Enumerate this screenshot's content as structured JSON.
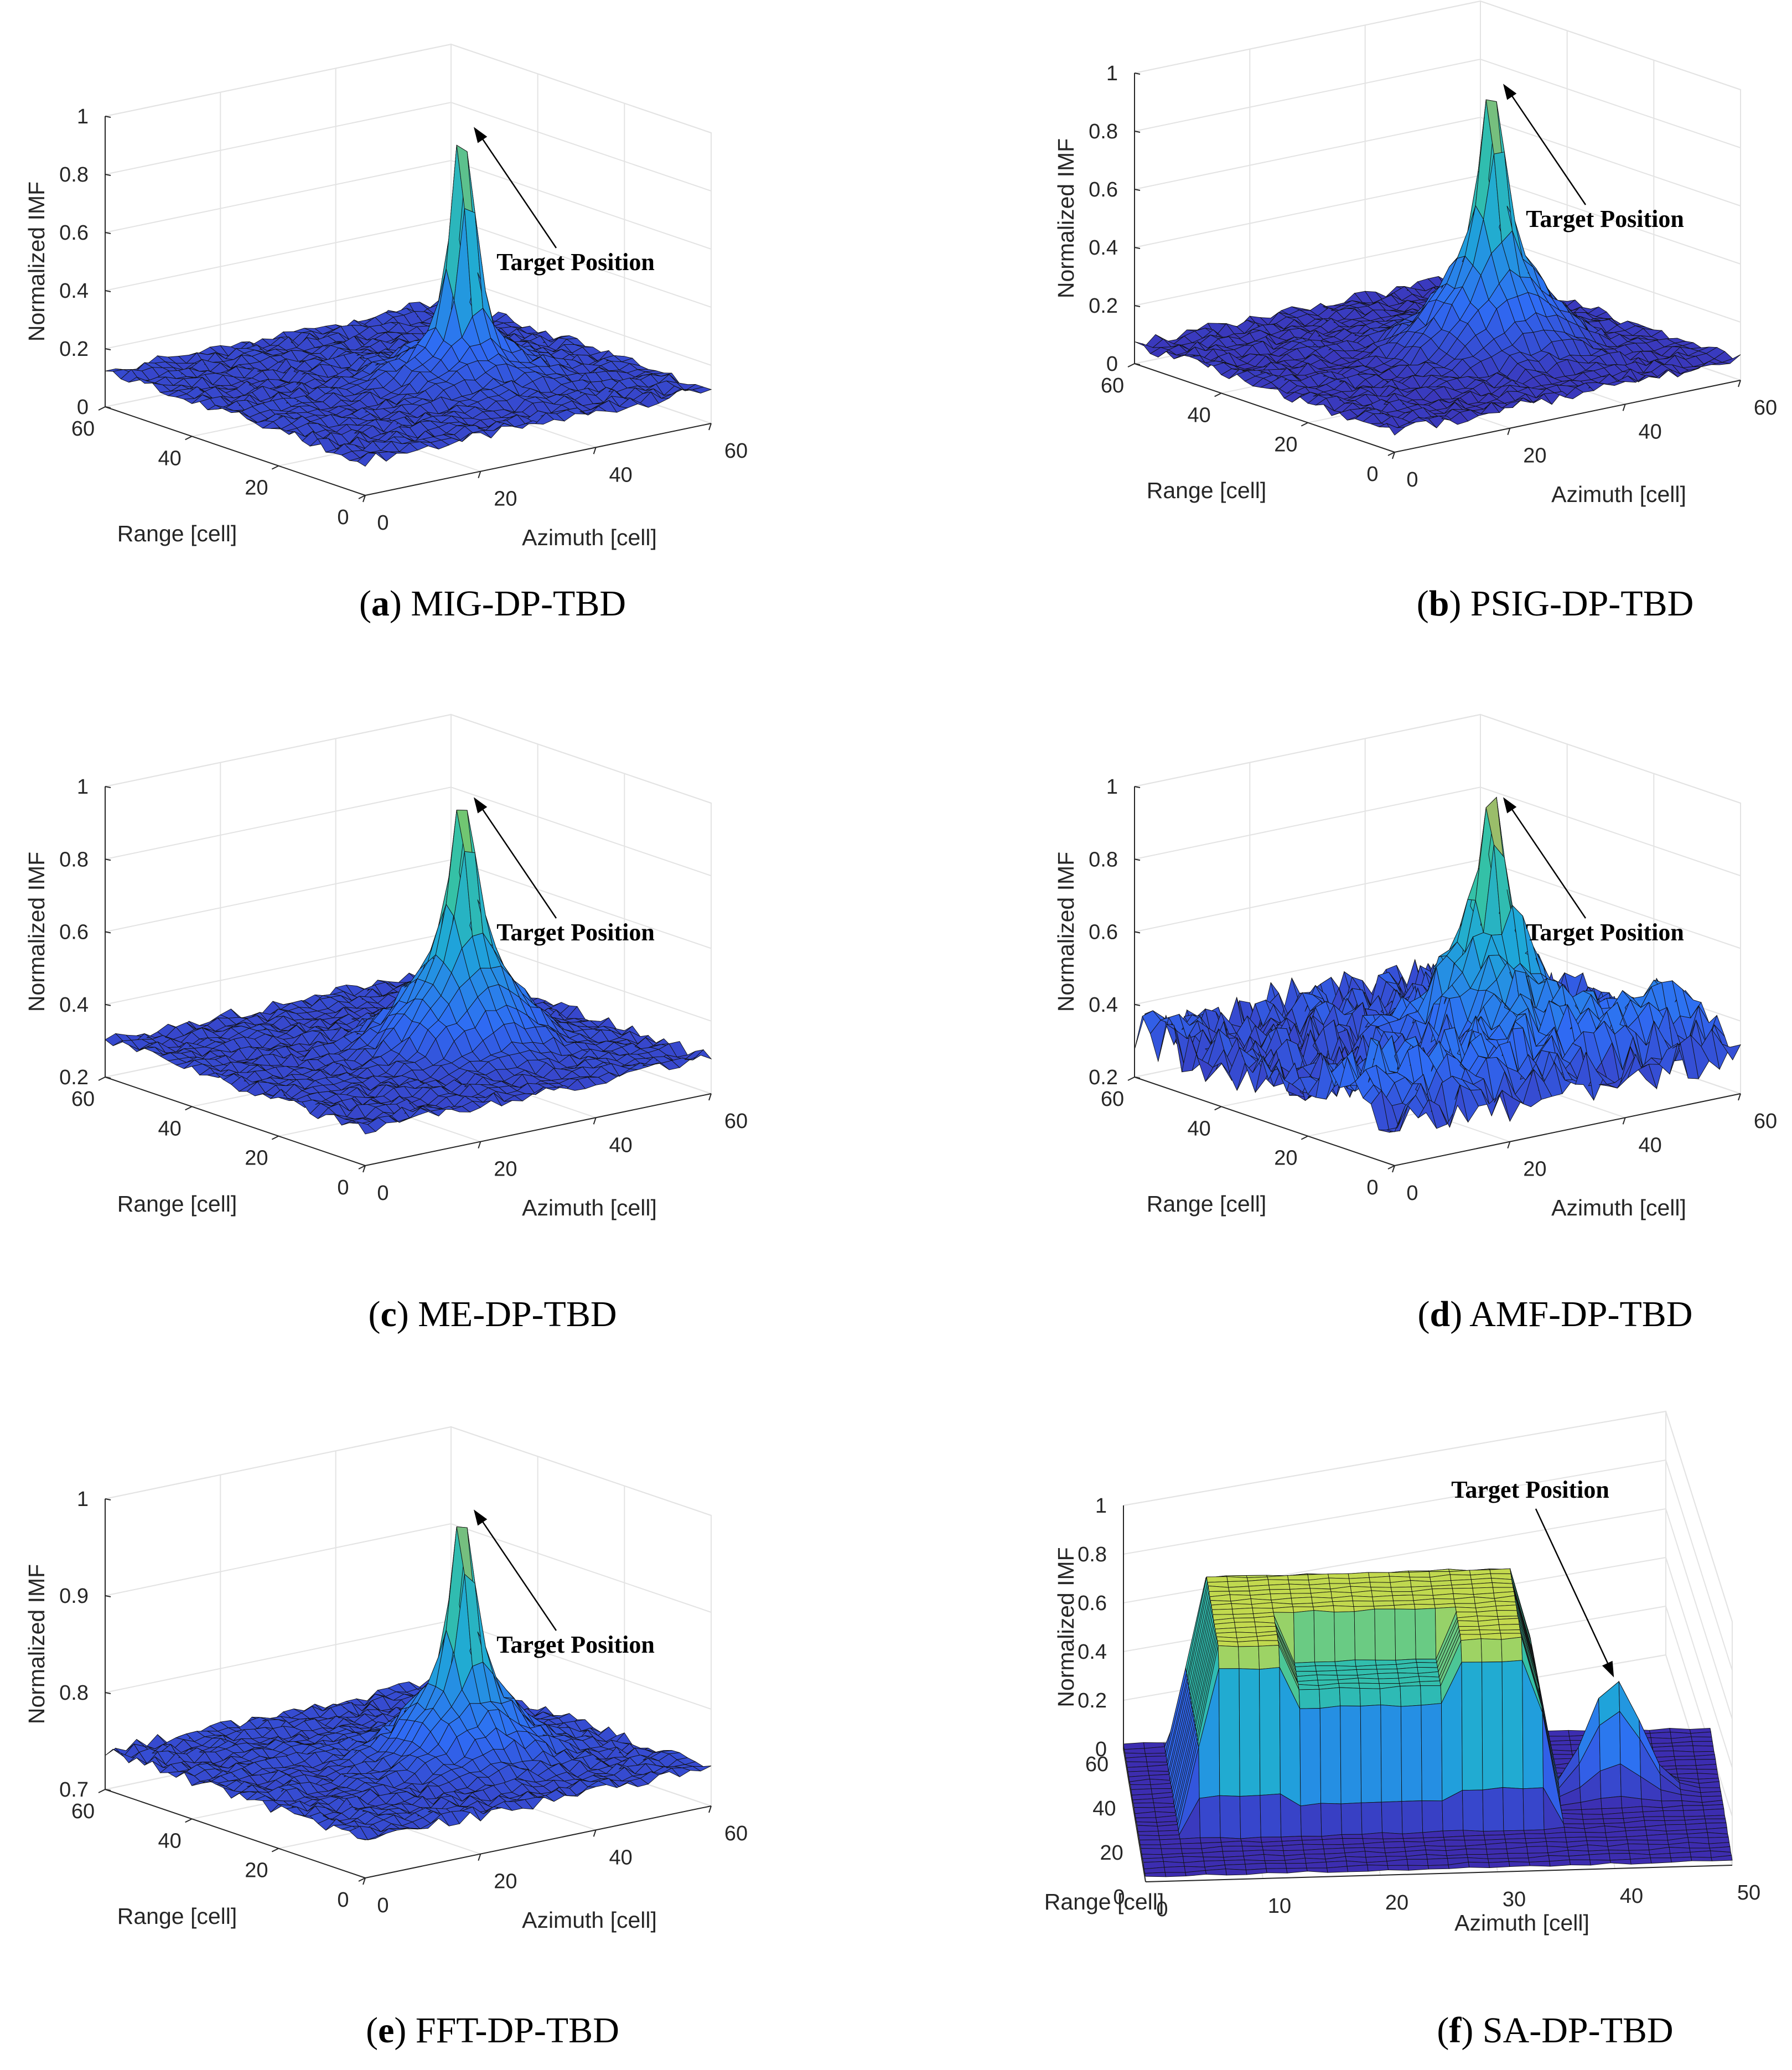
{
  "chart_data": [
    {
      "type": "surface3d",
      "panel_letter": "a",
      "caption_title": "MIG-DP-TBD",
      "zlabel": "Normalized IMF",
      "xlabel": "Azimuth [cell]",
      "ylabel": "Range [cell]",
      "zticks": [
        "0",
        "0.2",
        "0.4",
        "0.6",
        "0.8",
        "1"
      ],
      "azticks": [
        "0",
        "20",
        "40",
        "60"
      ],
      "rgticks": [
        "0",
        "20",
        "40",
        "60"
      ],
      "zlim": [
        0,
        1
      ],
      "annotation": "Target Position",
      "peak": 1.0,
      "base": 0.12,
      "bump": 0.3,
      "colors": [
        "#3e26a8",
        "#2f6bf4",
        "#1ea8d8",
        "#36c3a3",
        "#f9b833"
      ]
    },
    {
      "type": "surface3d",
      "panel_letter": "b",
      "caption_title": "PSIG-DP-TBD",
      "zlabel": "Normalized IMF",
      "xlabel": "Azimuth [cell]",
      "ylabel": "Range [cell]",
      "zticks": [
        "0",
        "0.2",
        "0.4",
        "0.6",
        "0.8",
        "1"
      ],
      "azticks": [
        "0",
        "20",
        "40",
        "60"
      ],
      "rgticks": [
        "0",
        "20",
        "40",
        "60"
      ],
      "zlim": [
        0,
        1
      ],
      "annotation": "Target Position",
      "peak": 1.0,
      "base": 0.07,
      "bump": 0.45,
      "colors": [
        "#3e26a8",
        "#2f6bf4",
        "#1ea8d8",
        "#36c3a3",
        "#f9b833"
      ]
    },
    {
      "type": "surface3d",
      "panel_letter": "c",
      "caption_title": "ME-DP-TBD",
      "zlabel": "Normalized IMF",
      "xlabel": "Azimuth [cell]",
      "ylabel": "Range [cell]",
      "zticks": [
        "0.2",
        "0.4",
        "0.6",
        "0.8",
        "1"
      ],
      "azticks": [
        "0",
        "20",
        "40",
        "60"
      ],
      "rgticks": [
        "0",
        "20",
        "40",
        "60"
      ],
      "zlim": [
        0.2,
        1
      ],
      "annotation": "Target Position",
      "peak": 1.0,
      "base": 0.3,
      "bump": 0.62,
      "colors": [
        "#3e26a8",
        "#2f6bf4",
        "#1ea8d8",
        "#36c3a3",
        "#b8c936"
      ]
    },
    {
      "type": "surface3d",
      "panel_letter": "d",
      "caption_title": "AMF-DP-TBD",
      "zlabel": "Normalized IMF",
      "xlabel": "Azimuth [cell]",
      "ylabel": "Range [cell]",
      "zticks": [
        "0.2",
        "0.4",
        "0.6",
        "0.8",
        "1"
      ],
      "azticks": [
        "0",
        "20",
        "40",
        "60"
      ],
      "rgticks": [
        "0",
        "20",
        "40",
        "60"
      ],
      "zlim": [
        0.2,
        1
      ],
      "annotation": "Target Position",
      "peak": 1.0,
      "base": 0.32,
      "bump": 0.65,
      "colors": [
        "#3e26a8",
        "#2f6bf4",
        "#1ea8d8",
        "#36c3a3",
        "#f9b833"
      ]
    },
    {
      "type": "surface3d",
      "panel_letter": "e",
      "caption_title": "FFT-DP-TBD",
      "zlabel": "Normalized IMF",
      "xlabel": "Azimuth [cell]",
      "ylabel": "Range [cell]",
      "zticks": [
        "0.7",
        "0.8",
        "0.9",
        "1"
      ],
      "azticks": [
        "0",
        "20",
        "40",
        "60"
      ],
      "rgticks": [
        "0",
        "20",
        "40",
        "60"
      ],
      "zlim": [
        0.7,
        1
      ],
      "annotation": "Target Position",
      "peak": 1.0,
      "base": 0.74,
      "bump": 0.83,
      "colors": [
        "#3e26a8",
        "#2f6bf4",
        "#1ea8d8",
        "#36c3a3",
        "#f9b833"
      ]
    },
    {
      "type": "surface3d",
      "panel_letter": "f",
      "caption_title": "SA-DP-TBD",
      "zlabel": "Normalized IMF",
      "xlabel": "Azimuth [cell]",
      "ylabel": "Range [cell]",
      "zticks": [
        "0",
        "0.2",
        "0.4",
        "0.6",
        "0.8",
        "1"
      ],
      "azticks": [
        "0",
        "10",
        "20",
        "30",
        "40",
        "50"
      ],
      "rgticks": [
        "0",
        "20",
        "40",
        "60"
      ],
      "zlim": [
        0,
        1
      ],
      "annotation": "Target Position",
      "peak": 0.45,
      "base": 0.02,
      "plateau": 0.75,
      "colors": [
        "#3e26a8",
        "#2f6bf4",
        "#1ea8d8",
        "#36c3a3",
        "#f0e032"
      ]
    }
  ]
}
